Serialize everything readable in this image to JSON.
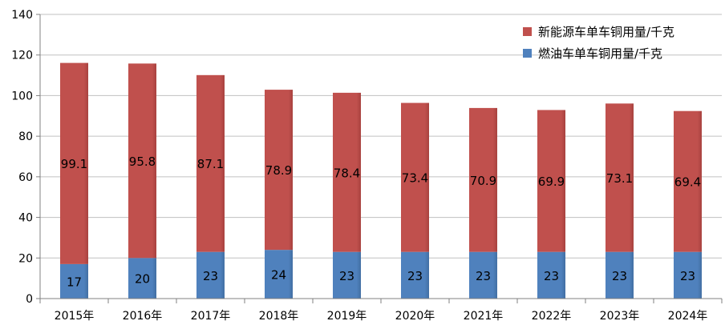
{
  "chart_data": {
    "type": "bar",
    "stacked": true,
    "categories": [
      "2015年",
      "2016年",
      "2017年",
      "2018年",
      "2019年",
      "2020年",
      "2021年",
      "2022年",
      "2023年",
      "2024年"
    ],
    "series": [
      {
        "name": "燃油车单车铜用量/千克",
        "color": "#4f81bd",
        "values": [
          17,
          20,
          23,
          24,
          23,
          23,
          23,
          23,
          23,
          23
        ]
      },
      {
        "name": "新能源车单车铜用量/千克",
        "color": "#c0504d",
        "values": [
          99.1,
          95.8,
          87.1,
          78.9,
          78.4,
          73.4,
          70.9,
          69.9,
          73.1,
          69.4
        ]
      }
    ],
    "ylim": [
      0,
      140
    ],
    "yticks": [
      0,
      20,
      40,
      60,
      80,
      100,
      120,
      140
    ],
    "grid": "horizontal",
    "legend_position": "top-right",
    "legend_order": [
      "新能源车单车铜用量/千克",
      "燃油车单车铜用量/千克"
    ]
  }
}
